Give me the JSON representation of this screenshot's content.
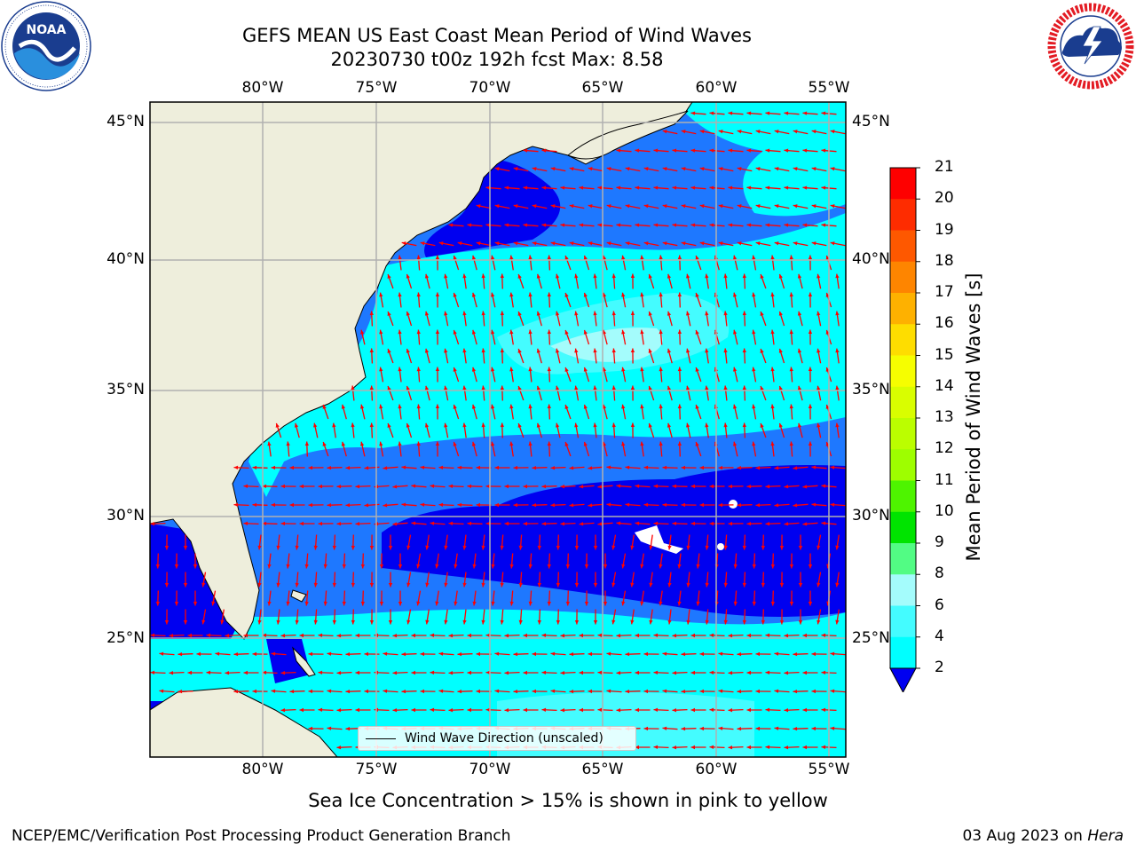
{
  "title_line1": "GEFS MEAN US East Coast Mean Period of Wind Waves",
  "title_line2": "20230730 t00z 192h fcst   Max: 8.58",
  "logos": {
    "noaa": {
      "text": "NOAA",
      "ring_text": "NATIONAL OCEANIC AND ATMOSPHERIC ADMINISTRATION · U.S. DEPARTMENT OF COMMERCE"
    },
    "nws": {
      "ring_text": "NATIONAL WEATHER SERVICE"
    }
  },
  "map": {
    "longitude_labels": [
      "80°W",
      "75°W",
      "70°W",
      "65°W",
      "60°W",
      "55°W"
    ],
    "latitude_labels": [
      "45°N",
      "40°N",
      "35°N",
      "30°N",
      "25°N"
    ],
    "colors": {
      "land": "#eeeedc",
      "water_2_4": "#1e78ff",
      "water_lt2": "#0000f0",
      "water_4_6": "#00ffff",
      "water_6_8": "#44fcff",
      "water_8_9": "#a4fcfc",
      "arrows": "#ff0000",
      "grid": "#b0b0b0"
    },
    "legend": {
      "label": "Wind Wave Direction (unscaled)"
    }
  },
  "colorbar": {
    "label": "Mean Period of Wind Waves [s]",
    "ticks": [
      "21",
      "20",
      "19",
      "18",
      "17",
      "16",
      "15",
      "14",
      "13",
      "12",
      "11",
      "10",
      "9",
      "8",
      "6",
      "4",
      "2"
    ],
    "colors": [
      "#fe0000",
      "#fe2c00",
      "#fe5800",
      "#fe8500",
      "#feb100",
      "#fedd00",
      "#f6fe00",
      "#d9fe00",
      "#bbfe00",
      "#9efe00",
      "#4ef400",
      "#00e400",
      "#52fc84",
      "#a4fcfc",
      "#44fcff",
      "#00ffff",
      "#1e78ff"
    ],
    "under_color": "#0000f0"
  },
  "note": "Sea Ice Concentration > 15% is shown in pink to yellow",
  "footer_left": "NCEP/EMC/Verification Post Processing Product Generation Branch",
  "footer_right_date": "03 Aug 2023 on ",
  "footer_right_machine": "Hera"
}
